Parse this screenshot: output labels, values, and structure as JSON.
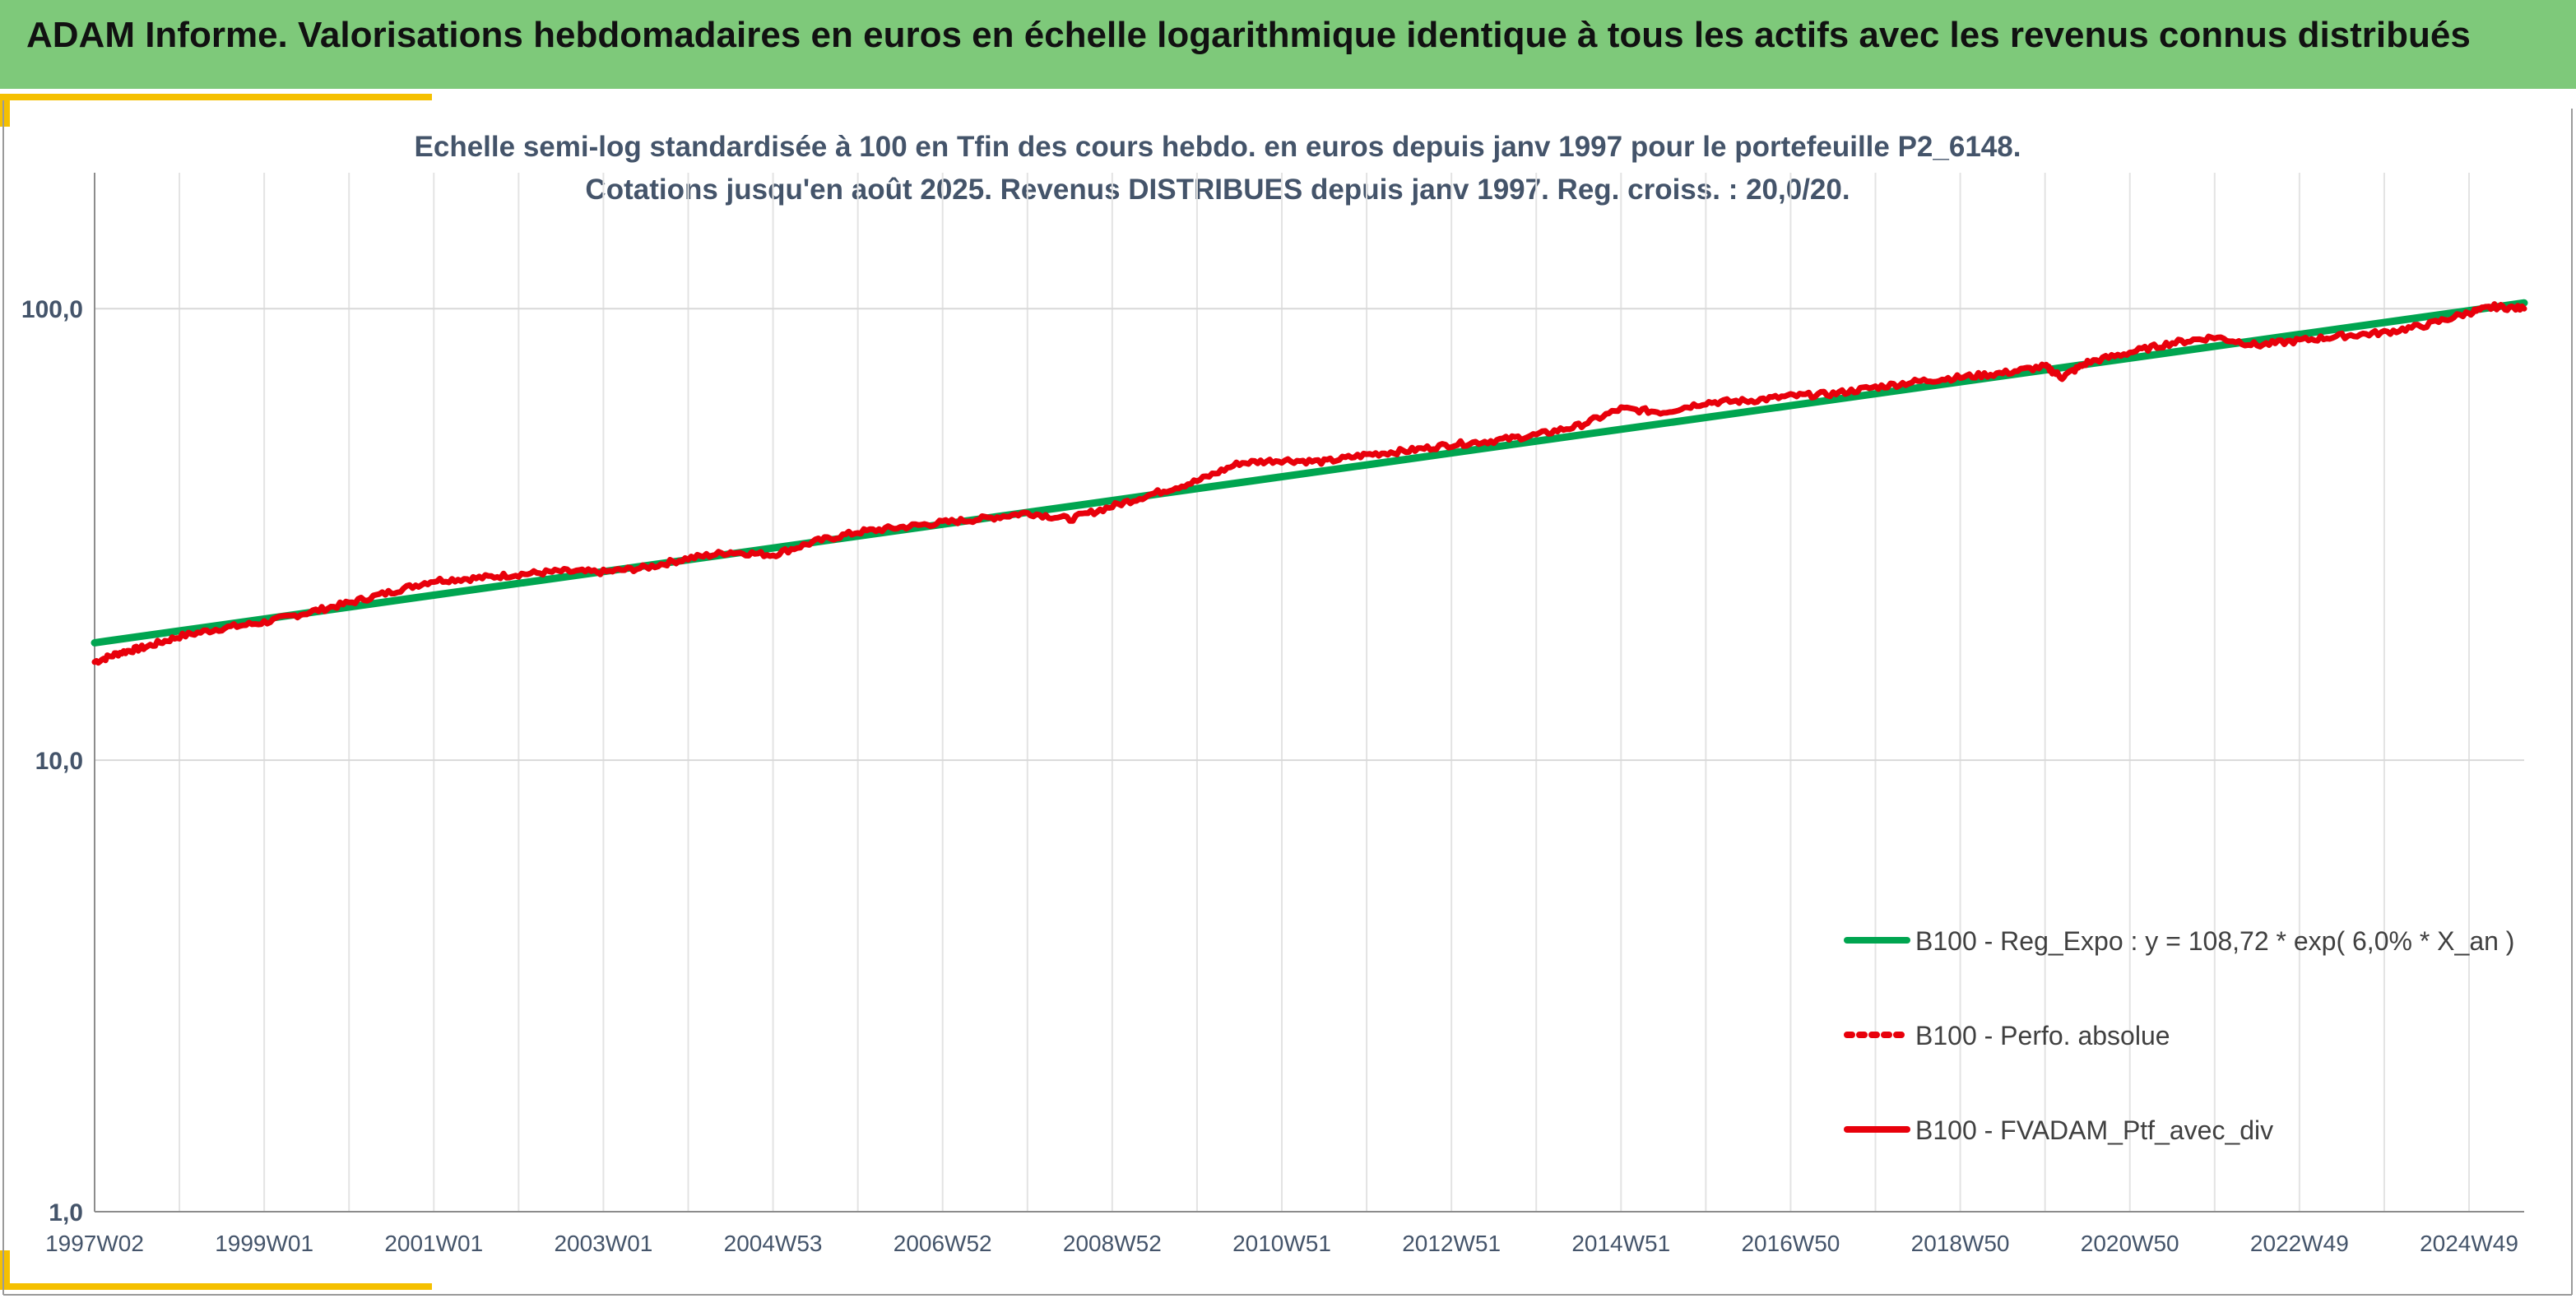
{
  "header": {
    "title": "ADAM Informe. Valorisations hebdomadaires en euros en échelle logarithmique identique à tous les actifs avec les revenus connus distribués"
  },
  "colors": {
    "banner": "#7ec97a",
    "accent_corner": "#f5c000",
    "regression": "#00a550",
    "portfolio": "#e8000b"
  },
  "chart_data": {
    "type": "line",
    "title_line1": "Echelle semi-log standardisée à 100 en Tfin des cours hebdo. en euros depuis janv 1997 pour le portefeuille P2_6148.",
    "title_line2": "Cotations jusqu'en août 2025. Revenus DISTRIBUES depuis janv 1997. Reg. croiss. : 20,0/20.",
    "y_scale": "log",
    "ylim": [
      1,
      200
    ],
    "xlim": [
      1997.0,
      2025.65
    ],
    "y_ticks": [
      {
        "value": 1,
        "label": "1,0"
      },
      {
        "value": 10,
        "label": "10,0"
      },
      {
        "value": 100,
        "label": "100,0"
      }
    ],
    "x_ticks": [
      {
        "value": 1997.0,
        "label": "1997W02"
      },
      {
        "value": 1999.0,
        "label": "1999W01"
      },
      {
        "value": 2001.0,
        "label": "2001W01"
      },
      {
        "value": 2003.0,
        "label": "2003W01"
      },
      {
        "value": 2005.0,
        "label": "2004W53"
      },
      {
        "value": 2007.0,
        "label": "2006W52"
      },
      {
        "value": 2009.0,
        "label": "2008W52"
      },
      {
        "value": 2011.0,
        "label": "2010W51"
      },
      {
        "value": 2013.0,
        "label": "2012W51"
      },
      {
        "value": 2015.0,
        "label": "2014W51"
      },
      {
        "value": 2017.0,
        "label": "2016W50"
      },
      {
        "value": 2019.0,
        "label": "2018W50"
      },
      {
        "value": 2021.0,
        "label": "2020W50"
      },
      {
        "value": 2023.0,
        "label": "2022W49"
      },
      {
        "value": 2025.0,
        "label": "2024W49"
      }
    ],
    "grid": true,
    "legend_position": "bottom-right",
    "series": [
      {
        "name": "B100 - Reg_Expo : y = 108,72 * exp( 6,0% *  X_an )",
        "color": "#00a550",
        "style": "solid",
        "x": [
          1997.0,
          2001.0,
          2005.0,
          2009.0,
          2013.0,
          2017.0,
          2021.0,
          2025.65
        ],
        "y": [
          18.2,
          23.2,
          29.5,
          37.6,
          47.9,
          61.0,
          77.7,
          103.0
        ]
      },
      {
        "name": "B100 - Perfo. absolue",
        "color": "#e8000b",
        "style": "dotted",
        "x": [],
        "y": []
      },
      {
        "name": "B100 - FVADAM_Ptf_avec_div",
        "color": "#e8000b",
        "style": "solid",
        "x": [
          1997.0,
          1997.3,
          1997.6,
          1998.0,
          1998.5,
          1999.0,
          1999.5,
          2000.0,
          2000.5,
          2001.0,
          2001.5,
          2002.0,
          2002.5,
          2003.0,
          2003.5,
          2004.0,
          2004.5,
          2005.0,
          2005.5,
          2006.0,
          2006.5,
          2007.0,
          2007.5,
          2008.0,
          2008.5,
          2009.0,
          2009.5,
          2010.0,
          2010.5,
          2011.0,
          2011.5,
          2012.0,
          2012.5,
          2013.0,
          2013.5,
          2014.0,
          2014.5,
          2015.0,
          2015.5,
          2016.0,
          2016.5,
          2017.0,
          2017.5,
          2018.0,
          2018.5,
          2019.0,
          2019.5,
          2020.0,
          2020.2,
          2020.5,
          2021.0,
          2021.5,
          2022.0,
          2022.5,
          2023.0,
          2023.5,
          2024.0,
          2024.5,
          2025.0,
          2025.3,
          2025.65
        ],
        "y": [
          16.5,
          17.3,
          17.8,
          18.8,
          19.6,
          20.2,
          21.2,
          22.3,
          23.6,
          25.0,
          25.3,
          25.8,
          26.2,
          26.1,
          26.7,
          28.0,
          28.9,
          28.5,
          30.5,
          32.0,
          32.8,
          33.6,
          34.3,
          35.3,
          34.2,
          36.5,
          39.0,
          41.5,
          45.5,
          46.2,
          45.8,
          47.5,
          48.5,
          50.0,
          51.0,
          52.5,
          55.0,
          60.0,
          59.0,
          62.0,
          62.5,
          64.0,
          64.8,
          67.0,
          69.0,
          70.5,
          72.0,
          74.5,
          70.5,
          76.0,
          80.0,
          84.0,
          86.5,
          83.0,
          85.0,
          87.0,
          88.5,
          92.0,
          98.0,
          101.0,
          100.0
        ]
      }
    ]
  }
}
